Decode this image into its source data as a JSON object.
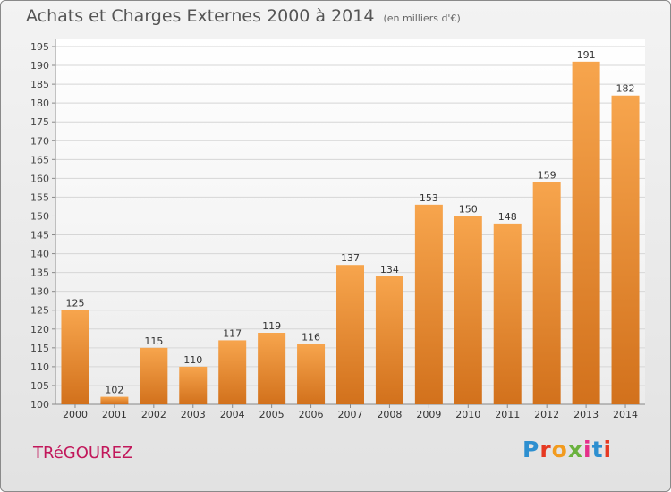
{
  "chart_data": {
    "type": "bar",
    "title": "Achats et Charges Externes 2000 à 2014",
    "subtitle": "(en milliers d'€)",
    "categories": [
      "2000",
      "2001",
      "2002",
      "2003",
      "2004",
      "2005",
      "2006",
      "2007",
      "2008",
      "2009",
      "2010",
      "2011",
      "2012",
      "2013",
      "2014"
    ],
    "values": [
      125,
      102,
      115,
      110,
      117,
      119,
      116,
      137,
      134,
      153,
      150,
      148,
      159,
      191,
      182
    ],
    "ylim": [
      100,
      195
    ],
    "yticks": [
      100,
      105,
      110,
      115,
      120,
      125,
      130,
      135,
      140,
      145,
      150,
      155,
      160,
      165,
      170,
      175,
      180,
      185,
      190,
      195
    ],
    "grid": true,
    "bar_color": "#f0953a"
  },
  "footer": {
    "commune": "TRéGOUREZ",
    "brand": "Proxiti",
    "brand_colors": [
      "#2d8fd0",
      "#e63922",
      "#f29b1e",
      "#6ab23e",
      "#e52f8a",
      "#2d8fd0",
      "#e63922"
    ]
  }
}
